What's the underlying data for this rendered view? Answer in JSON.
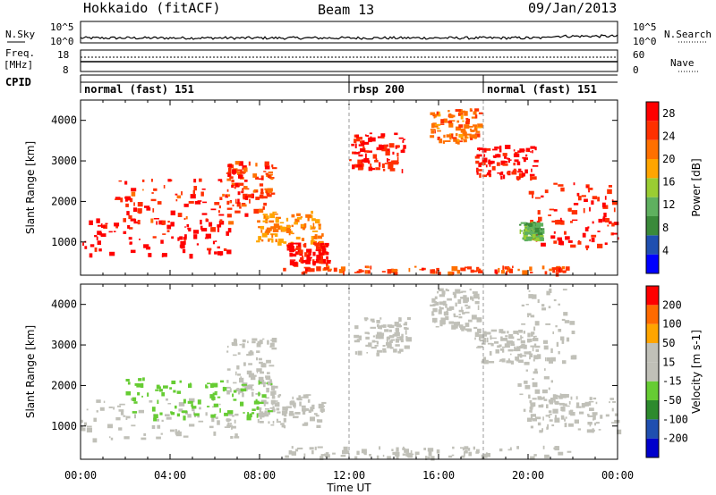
{
  "header": {
    "station": "Hokkaido (fitACF)",
    "beam": "Beam 13",
    "date": "09/Jan/2013"
  },
  "noise_panel": {
    "left_label": "N.Sky",
    "right_label": "N.Search",
    "left_ticks": [
      "10^5",
      "10^0"
    ],
    "right_ticks": [
      "10^5",
      "10^0"
    ]
  },
  "freq_panel": {
    "left_label_1": "Freq.",
    "left_label_2": "[MHz]",
    "right_label": "Nave",
    "left_ticks": [
      "18",
      "8"
    ],
    "right_ticks": [
      "60",
      "0"
    ]
  },
  "cpid_panel": {
    "label": "CPID",
    "segments": [
      {
        "start": "00:00",
        "end": "12:00",
        "name": "normal (fast) 151"
      },
      {
        "start": "12:00",
        "end": "18:00",
        "name": "rbsp 200"
      },
      {
        "start": "18:00",
        "end": "24:00",
        "name": "normal (fast) 151"
      }
    ]
  },
  "colors": {
    "power_scale": [
      "#0000ff",
      "#1f4fb0",
      "#3a8a3a",
      "#5fb05f",
      "#9acd32",
      "#ffa500",
      "#ff7000",
      "#ff3000",
      "#ff0000"
    ],
    "velocity_scale": [
      "#ff0000",
      "#ff6a00",
      "#ffa500",
      "#c0c0b8",
      "#c0c0b8",
      "#66cc33",
      "#2d8a2d",
      "#1f4fb0",
      "#0000cc"
    ],
    "ground_scatter": "#c0c0b8"
  },
  "chart_data": [
    {
      "type": "heatmap",
      "name": "power",
      "ylabel": "Slant Range [km]",
      "xlabel": "Time UT",
      "xlim": [
        "00:00",
        "24:00"
      ],
      "ylim": [
        180,
        4500
      ],
      "x_ticks": [
        "00:00",
        "04:00",
        "08:00",
        "12:00",
        "16:00",
        "20:00",
        "00:00"
      ],
      "y_ticks": [
        1000,
        2000,
        3000,
        4000
      ],
      "colorbar": {
        "label": "Power [dB]",
        "ticks": [
          4,
          8,
          12,
          16,
          20,
          24,
          28
        ],
        "range": [
          0,
          30
        ]
      },
      "regions": [
        {
          "t0": 0.0,
          "t1": 6.8,
          "r0": 700,
          "r1": 1600,
          "value": 29
        },
        {
          "t0": 1.5,
          "t1": 7.5,
          "r0": 1500,
          "r1": 2600,
          "value": 26
        },
        {
          "t0": 6.5,
          "t1": 8.6,
          "r0": 1800,
          "r1": 3000,
          "value": 25
        },
        {
          "t0": 7.8,
          "t1": 10.8,
          "r0": 1000,
          "r1": 1800,
          "value": 20
        },
        {
          "t0": 9.2,
          "t1": 11.0,
          "r0": 500,
          "r1": 1000,
          "value": 27
        },
        {
          "t0": 9.0,
          "t1": 21.8,
          "r0": 260,
          "r1": 420,
          "value": 24
        },
        {
          "t0": 12.0,
          "t1": 14.5,
          "r0": 2800,
          "r1": 3700,
          "value": 27
        },
        {
          "t0": 15.6,
          "t1": 17.8,
          "r0": 3500,
          "r1": 4300,
          "value": 22
        },
        {
          "t0": 17.6,
          "t1": 20.3,
          "r0": 2600,
          "r1": 3400,
          "value": 28
        },
        {
          "t0": 20.0,
          "t1": 24.0,
          "r0": 900,
          "r1": 2500,
          "value": 27
        },
        {
          "t0": 19.6,
          "t1": 20.6,
          "r0": 1100,
          "r1": 1500,
          "value": 12
        }
      ]
    },
    {
      "type": "heatmap",
      "name": "velocity",
      "ylabel": "Slant Range [km]",
      "xlabel": "Time UT",
      "xlim": [
        "00:00",
        "24:00"
      ],
      "ylim": [
        180,
        4500
      ],
      "x_ticks": [
        "00:00",
        "04:00",
        "08:00",
        "12:00",
        "16:00",
        "20:00",
        "00:00"
      ],
      "y_ticks": [
        1000,
        2000,
        3000,
        4000
      ],
      "colorbar": {
        "label": "Velocity [m s-1]",
        "ticks": [
          "200",
          "100",
          "50",
          "15",
          "-15",
          "-50",
          "-100",
          "-200"
        ],
        "range": [
          -250,
          250
        ]
      },
      "regions": [
        {
          "t0": 0.0,
          "t1": 7.0,
          "r0": 700,
          "r1": 1700,
          "value": 0
        },
        {
          "t0": 6.5,
          "t1": 8.6,
          "r0": 1800,
          "r1": 3200,
          "value": 0
        },
        {
          "t0": 7.8,
          "t1": 10.8,
          "r0": 1000,
          "r1": 1800,
          "value": 0
        },
        {
          "t0": 9.0,
          "t1": 21.8,
          "r0": 250,
          "r1": 520,
          "value": 40
        },
        {
          "t0": 12.2,
          "t1": 14.6,
          "r0": 2800,
          "r1": 3700,
          "value": 0
        },
        {
          "t0": 15.6,
          "t1": 17.8,
          "r0": 3400,
          "r1": 4400,
          "value": 0
        },
        {
          "t0": 17.6,
          "t1": 20.3,
          "r0": 2600,
          "r1": 3400,
          "value": 0
        },
        {
          "t0": 20.0,
          "t1": 24.0,
          "r0": 900,
          "r1": 1800,
          "value": 0
        },
        {
          "t0": 19.5,
          "t1": 22.0,
          "r0": 1200,
          "r1": 4400,
          "value": 45
        },
        {
          "t0": 2.0,
          "t1": 8.5,
          "r0": 1200,
          "r1": 2200,
          "value": -60
        }
      ]
    }
  ]
}
